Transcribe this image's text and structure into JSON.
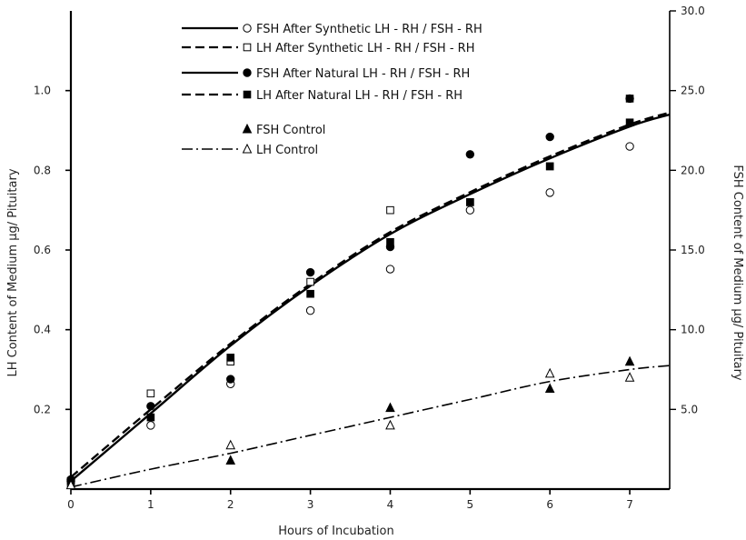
{
  "chart_data": {
    "type": "scatter",
    "title": "",
    "xlabel": "Hours of Incubation",
    "ylabel_left": "LH Content of Medium  μg/ Pituitary",
    "ylabel_right": "FSH Content of Medium  μg/ Pituitary",
    "xlim": [
      0,
      7.5
    ],
    "ylim_left": [
      0,
      1.2
    ],
    "ylim_right": [
      0,
      30
    ],
    "x_ticks": [
      0,
      1,
      2,
      3,
      4,
      5,
      6,
      7
    ],
    "x_tick_labels": [
      "0",
      "1",
      "2",
      "3",
      "4",
      "5",
      "6",
      "7"
    ],
    "y_left_ticks": [
      0.2,
      0.4,
      0.6,
      0.8,
      1.0
    ],
    "y_left_tick_labels": [
      "0.2",
      "0.4",
      "0.6",
      "0.8",
      "1.0"
    ],
    "y_right_ticks": [
      5,
      10,
      15,
      20,
      25,
      30
    ],
    "y_right_tick_labels": [
      "5.0",
      "10.0",
      "15.0",
      "20.0",
      "25.0",
      "30.0"
    ],
    "grid": false,
    "legend_position": "top-left",
    "series": [
      {
        "name": "FSH After Synthetic LH - RH / FSH - RH",
        "axis": "right",
        "marker": "circle-open",
        "line": "solid",
        "x": [
          0,
          1,
          2,
          3,
          4,
          5,
          6,
          7
        ],
        "y": [
          0.5,
          4.0,
          6.6,
          11.2,
          13.8,
          17.5,
          18.6,
          21.5
        ]
      },
      {
        "name": "LH After Synthetic LH - RH / FSH - RH",
        "axis": "left",
        "marker": "square-open",
        "line": "dashed",
        "x": [
          0,
          1,
          2,
          3,
          4,
          5,
          6,
          7
        ],
        "y": [
          0.01,
          0.24,
          0.32,
          0.52,
          0.7,
          0.72,
          0.81,
          0.98
        ]
      },
      {
        "name": "FSH After Natural LH - RH / FSH - RH",
        "axis": "right",
        "marker": "circle-filled",
        "line": "solid",
        "x": [
          0,
          1,
          2,
          3,
          4,
          5,
          6,
          7
        ],
        "y": [
          0.6,
          5.2,
          6.9,
          13.6,
          15.2,
          21.0,
          22.1,
          24.5
        ]
      },
      {
        "name": "LH After Natural LH - RH / FSH - RH",
        "axis": "left",
        "marker": "square-filled",
        "line": "dashed",
        "x": [
          0,
          1,
          2,
          3,
          4,
          5,
          6,
          7
        ],
        "y": [
          0.02,
          0.18,
          0.33,
          0.49,
          0.62,
          0.72,
          0.81,
          0.92
        ]
      },
      {
        "name": "FSH  Control",
        "axis": "right",
        "marker": "triangle-filled",
        "line": "none",
        "x": [
          2,
          4,
          6,
          7
        ],
        "y": [
          1.8,
          5.1,
          6.3,
          8.0
        ]
      },
      {
        "name": "LH Control",
        "axis": "left",
        "marker": "triangle-open",
        "line": "dashdot",
        "x": [
          0,
          2,
          4,
          6,
          7
        ],
        "y": [
          0.01,
          0.11,
          0.16,
          0.29,
          0.28
        ]
      }
    ],
    "fit_curves": [
      {
        "style": "solid",
        "axis": "left",
        "x": [
          0,
          1,
          2,
          3,
          4,
          5,
          6,
          7,
          7.5
        ],
        "y": [
          0.02,
          0.19,
          0.36,
          0.51,
          0.64,
          0.74,
          0.83,
          0.91,
          0.94
        ]
      },
      {
        "style": "dashed",
        "axis": "left",
        "x": [
          0,
          1,
          2,
          3,
          4,
          5,
          6,
          7,
          7.5
        ],
        "y": [
          0.03,
          0.2,
          0.365,
          0.515,
          0.645,
          0.745,
          0.835,
          0.915,
          0.945
        ]
      },
      {
        "style": "dashdot",
        "axis": "left",
        "x": [
          0,
          1,
          2,
          3,
          4,
          5,
          6,
          7,
          7.5
        ],
        "y": [
          0.005,
          0.05,
          0.09,
          0.135,
          0.18,
          0.225,
          0.27,
          0.3,
          0.31
        ]
      }
    ]
  }
}
